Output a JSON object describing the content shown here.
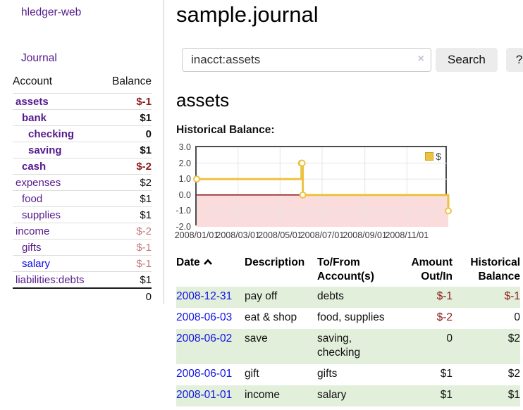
{
  "sidebar": {
    "brand": "hledger-web",
    "journal_label": "Journal",
    "accounts": {
      "header_account": "Account",
      "header_balance": "Balance",
      "rows": [
        {
          "name": "assets",
          "balance": "$-1"
        },
        {
          "name": "bank",
          "balance": "$1"
        },
        {
          "name": "checking",
          "balance": "0"
        },
        {
          "name": "saving",
          "balance": "$1"
        },
        {
          "name": "cash",
          "balance": "$-2"
        },
        {
          "name": "expenses",
          "balance": "$2"
        },
        {
          "name": "food",
          "balance": "$1"
        },
        {
          "name": "supplies",
          "balance": "$1"
        },
        {
          "name": "income",
          "balance": "$-2"
        },
        {
          "name": "gifts",
          "balance": "$-1"
        },
        {
          "name": "salary",
          "balance": "$-1"
        },
        {
          "name": "liabilities:debts",
          "balance": "$1"
        }
      ],
      "total": "0"
    }
  },
  "main": {
    "title": "sample.journal",
    "search": {
      "value": "inacct:assets",
      "clear_icon": "×",
      "button_label": "Search",
      "help_label": "?"
    },
    "account_heading": "assets",
    "chart_label": "Historical Balance:"
  },
  "chart_data": {
    "type": "line",
    "step": true,
    "title": "Historical Balance",
    "series": [
      {
        "name": "$",
        "color": "#edc240",
        "points": [
          {
            "x": "2008-01-01",
            "y": 1
          },
          {
            "x": "2008-06-01",
            "y": 2
          },
          {
            "x": "2008-06-02",
            "y": 2
          },
          {
            "x": "2008-06-03",
            "y": 0
          },
          {
            "x": "2008-12-31",
            "y": -1
          }
        ]
      }
    ],
    "xlim": [
      "2008-01-01",
      "2008-12-31"
    ],
    "ylim": [
      -2,
      3
    ],
    "yticks": [
      {
        "v": 3,
        "label": "3.0"
      },
      {
        "v": 2,
        "label": "2.0"
      },
      {
        "v": 1,
        "label": "1.0"
      },
      {
        "v": 0,
        "label": "0.0"
      },
      {
        "v": -1,
        "label": "-1.0"
      },
      {
        "v": -2,
        "label": "-2.0"
      }
    ],
    "xticks": [
      {
        "v": "2008-01-01",
        "label": "2008/01/01"
      },
      {
        "v": "2008-03-01",
        "label": "2008/03/01"
      },
      {
        "v": "2008-05-01",
        "label": "2008/05/01"
      },
      {
        "v": "2008-07-01",
        "label": "2008/07/01"
      },
      {
        "v": "2008-09-01",
        "label": "2008/09/01"
      },
      {
        "v": "2008-11-01",
        "label": "2008/11/01"
      }
    ],
    "legend": {
      "label": "$",
      "position": "top-right"
    },
    "grid": true,
    "negative_region_color": "#fbdcdc",
    "zero_line_color": "#8b0000",
    "grid_color": "#e5e5e5"
  },
  "register": {
    "headers": {
      "date": "Date",
      "sort_icon": "chevron-up",
      "description": "Description",
      "tofrom_line1": "To/From",
      "tofrom_line2": "Account(s)",
      "amount_line1": "Amount",
      "amount_line2": "Out/In",
      "balance_line1": "Historical",
      "balance_line2": "Balance"
    },
    "rows": [
      {
        "date": "2008-12-31",
        "description": "pay off",
        "accounts": "debts",
        "amount": "$-1",
        "balance": "$-1"
      },
      {
        "date": "2008-06-03",
        "description": "eat & shop",
        "accounts": "food, supplies",
        "amount": "$-2",
        "balance": "0"
      },
      {
        "date": "2008-06-02",
        "description": "save",
        "accounts": "saving, checking",
        "amount": "0",
        "balance": "$2"
      },
      {
        "date": "2008-06-01",
        "description": "gift",
        "accounts": "gifts",
        "amount": "$1",
        "balance": "$2"
      },
      {
        "date": "2008-01-01",
        "description": "income",
        "accounts": "salary",
        "amount": "$1",
        "balance": "$1"
      }
    ]
  },
  "colors": {
    "link_purple": "#551a8b",
    "link_blue": "#1212e6",
    "negative_strong": "#8b1a1a",
    "negative_muted": "#c4757e",
    "row_green": "#e2efda",
    "chart_line_yellow": "#edc240",
    "chart_negative_fill": "#fbdcdc",
    "chart_zero_line": "#8b0000",
    "button_bg": "#ececec"
  }
}
